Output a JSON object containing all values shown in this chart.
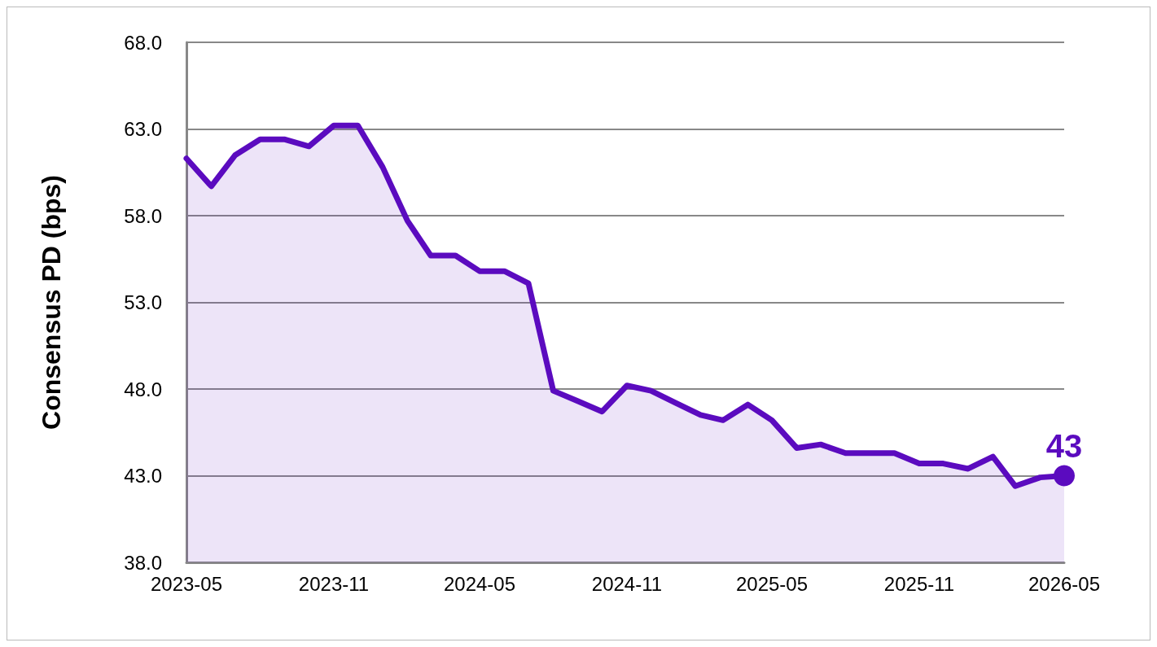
{
  "chart_data": {
    "type": "area",
    "ylabel": "Consensus PD (bps)",
    "x": [
      "2023-05",
      "2023-06",
      "2023-07",
      "2023-08",
      "2023-09",
      "2023-10",
      "2023-11",
      "2023-12",
      "2024-01",
      "2024-02",
      "2024-03",
      "2024-04",
      "2024-05",
      "2024-06",
      "2024-07",
      "2024-08",
      "2024-09",
      "2024-10",
      "2024-11",
      "2024-12",
      "2025-01",
      "2025-02",
      "2025-03",
      "2025-04",
      "2025-05",
      "2025-06",
      "2025-07",
      "2025-08",
      "2025-09",
      "2025-10",
      "2025-11",
      "2025-12",
      "2026-01",
      "2026-02",
      "2026-03",
      "2026-04",
      "2026-05"
    ],
    "series": [
      {
        "color": "#5b0bbf",
        "values": [
          61.3,
          59.7,
          61.5,
          62.4,
          62.4,
          62.0,
          63.2,
          63.2,
          60.8,
          57.7,
          55.7,
          55.7,
          54.8,
          54.8,
          54.1,
          47.9,
          47.3,
          46.7,
          48.2,
          47.9,
          47.2,
          46.5,
          46.2,
          47.1,
          46.2,
          44.6,
          44.8,
          44.3,
          44.3,
          44.3,
          43.7,
          43.7,
          43.4,
          44.1,
          42.4,
          42.9,
          43
        ],
        "value_labels": [
          null,
          null,
          null,
          null,
          null,
          null,
          null,
          null,
          null,
          null,
          null,
          null,
          null,
          null,
          null,
          null,
          null,
          null,
          null,
          null,
          null,
          null,
          null,
          null,
          null,
          null,
          null,
          null,
          null,
          null,
          null,
          null,
          null,
          null,
          null,
          null,
          "43"
        ]
      }
    ],
    "xlim": [
      "2023-05",
      "2026-05"
    ],
    "xticks": [
      "2023-05",
      "2023-11",
      "2024-05",
      "2024-11",
      "2025-05",
      "2025-11",
      "2026-05"
    ],
    "ylim": [
      38,
      68
    ],
    "yticks": [
      {
        "value": 38,
        "label": "38.0"
      },
      {
        "value": 43,
        "label": "43.0"
      },
      {
        "value": 48,
        "label": "48.0"
      },
      {
        "value": 53,
        "label": "53.0"
      },
      {
        "value": 58,
        "label": "58.0"
      },
      {
        "value": 63,
        "label": "63.0"
      },
      {
        "value": 68,
        "label": "68.0"
      }
    ],
    "grid": "y",
    "marker": "none",
    "line_style": "solid"
  }
}
